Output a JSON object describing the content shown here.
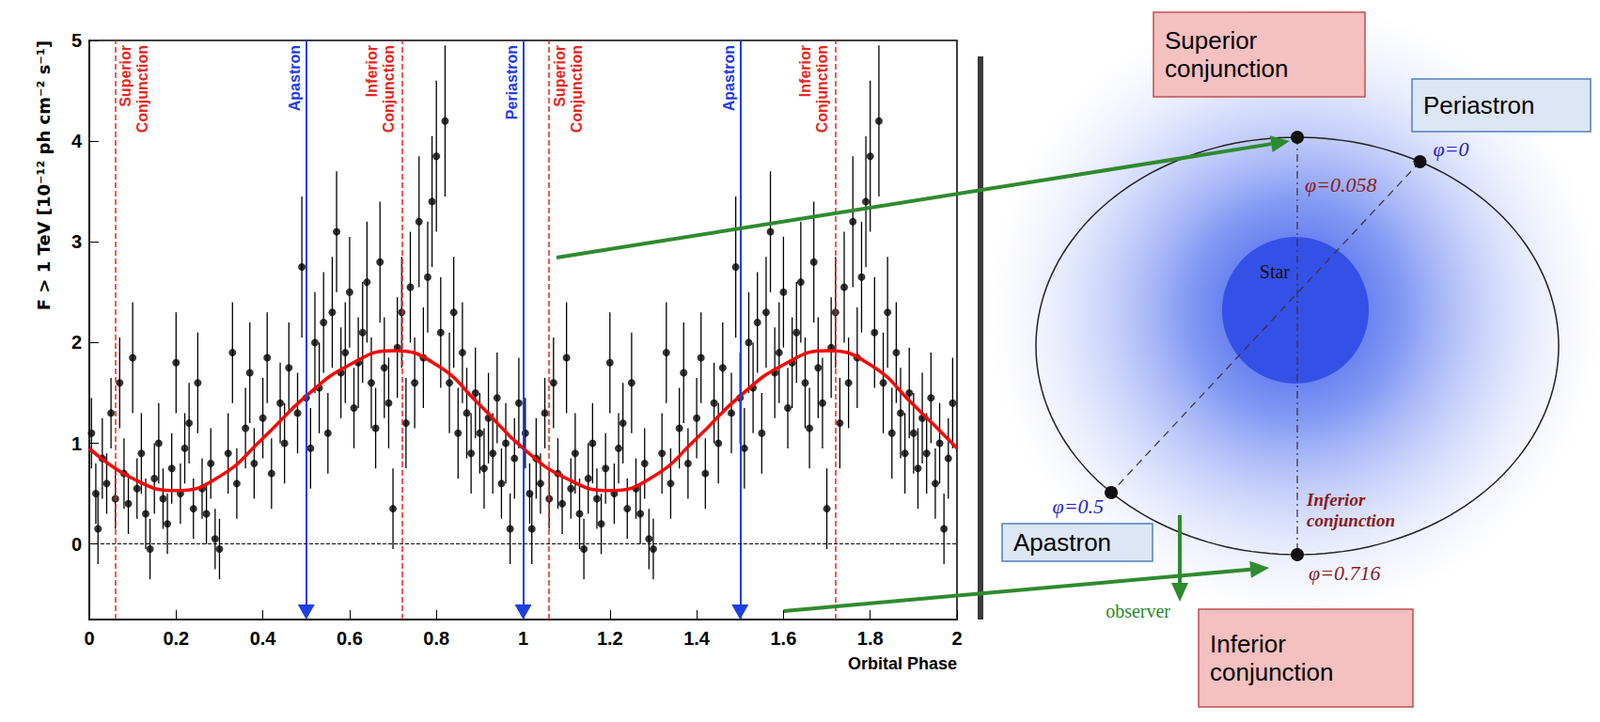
{
  "chart_data": {
    "type": "scatter",
    "xlabel": "Orbital Phase",
    "ylabel": "F > 1 TeV [10⁻¹² ph cm⁻² s⁻¹]",
    "xlim": [
      0,
      2
    ],
    "xticks": [
      0,
      0.2,
      0.4,
      0.6,
      0.8,
      1,
      1.2,
      1.4,
      1.6,
      1.8,
      2
    ],
    "ylim": [
      -0.75,
      5
    ],
    "yticks": [
      0,
      1,
      2,
      3,
      4,
      5
    ],
    "grid": false,
    "series": [
      {
        "type": "scatter",
        "color": "#000000",
        "marker": "circle",
        "x": [
          0.005,
          0.015,
          0.02,
          0.03,
          0.04,
          0.05,
          0.06,
          0.07,
          0.08,
          0.09,
          0.1,
          0.11,
          0.12,
          0.13,
          0.14,
          0.15,
          0.16,
          0.17,
          0.18,
          0.19,
          0.2,
          0.21,
          0.22,
          0.23,
          0.24,
          0.25,
          0.26,
          0.27,
          0.28,
          0.29,
          0.3,
          0.32,
          0.33,
          0.34,
          0.36,
          0.37,
          0.38,
          0.4,
          0.41,
          0.42,
          0.44,
          0.45,
          0.46,
          0.48,
          0.49,
          0.5,
          0.51,
          0.52,
          0.53,
          0.54,
          0.55,
          0.56,
          0.57,
          0.58,
          0.59,
          0.6,
          0.61,
          0.62,
          0.63,
          0.64,
          0.65,
          0.66,
          0.67,
          0.68,
          0.69,
          0.7,
          0.71,
          0.72,
          0.73,
          0.74,
          0.75,
          0.76,
          0.77,
          0.78,
          0.79,
          0.8,
          0.81,
          0.82,
          0.83,
          0.84,
          0.85,
          0.86,
          0.87,
          0.88,
          0.89,
          0.9,
          0.91,
          0.92,
          0.93,
          0.94,
          0.95,
          0.96,
          0.97,
          0.98,
          0.99,
          1.005,
          1.015,
          1.02,
          1.03,
          1.04,
          1.05,
          1.06,
          1.07,
          1.08,
          1.09,
          1.1,
          1.11,
          1.12,
          1.13,
          1.14,
          1.15,
          1.16,
          1.17,
          1.18,
          1.19,
          1.2,
          1.21,
          1.22,
          1.23,
          1.24,
          1.25,
          1.26,
          1.27,
          1.28,
          1.29,
          1.3,
          1.32,
          1.33,
          1.34,
          1.36,
          1.37,
          1.38,
          1.4,
          1.41,
          1.42,
          1.44,
          1.45,
          1.46,
          1.48,
          1.49,
          1.5,
          1.51,
          1.52,
          1.53,
          1.54,
          1.55,
          1.56,
          1.57,
          1.58,
          1.59,
          1.6,
          1.61,
          1.62,
          1.63,
          1.64,
          1.65,
          1.66,
          1.67,
          1.68,
          1.69,
          1.7,
          1.71,
          1.72,
          1.73,
          1.74,
          1.75,
          1.76,
          1.77,
          1.78,
          1.79,
          1.8,
          1.81,
          1.82,
          1.83,
          1.84,
          1.85,
          1.86,
          1.87,
          1.88,
          1.89,
          1.9,
          1.91,
          1.92,
          1.93,
          1.94,
          1.95,
          1.96,
          1.97,
          1.98,
          1.99
        ],
        "values": [
          1.1,
          0.5,
          0.15,
          0.85,
          0.6,
          1.3,
          0.45,
          1.6,
          0.7,
          0.4,
          1.85,
          0.55,
          0.9,
          0.3,
          -0.05,
          0.65,
          1.0,
          0.45,
          0.2,
          0.75,
          1.8,
          0.5,
          0.95,
          1.2,
          0.35,
          1.6,
          0.55,
          0.3,
          0.8,
          0.05,
          -0.05,
          0.9,
          1.9,
          0.6,
          1.15,
          1.7,
          0.8,
          1.25,
          1.85,
          0.7,
          1.4,
          1.0,
          1.75,
          1.3,
          2.75,
          1.45,
          0.95,
          2.0,
          1.55,
          2.2,
          1.1,
          2.3,
          3.1,
          1.7,
          1.9,
          2.5,
          1.35,
          1.8,
          2.1,
          2.6,
          1.6,
          1.15,
          2.8,
          1.75,
          1.4,
          0.35,
          1.95,
          2.3,
          1.2,
          2.55,
          1.6,
          3.2,
          1.85,
          2.65,
          3.4,
          3.85,
          2.1,
          4.2,
          1.6,
          2.3,
          1.1,
          1.9,
          1.3,
          0.9,
          1.5,
          1.1,
          0.75,
          1.25,
          0.9,
          1.45,
          0.6,
          1.0,
          0.15,
          0.85,
          1.4,
          1.1,
          0.5,
          0.15,
          0.85,
          0.6,
          1.3,
          0.45,
          1.6,
          0.7,
          0.4,
          1.85,
          0.55,
          0.9,
          0.3,
          -0.05,
          0.65,
          1.0,
          0.45,
          0.2,
          0.75,
          1.8,
          0.5,
          0.95,
          1.2,
          0.35,
          1.6,
          0.55,
          0.3,
          0.8,
          0.05,
          -0.05,
          0.9,
          1.9,
          0.6,
          1.15,
          1.7,
          0.8,
          1.25,
          1.85,
          0.7,
          1.4,
          1.0,
          1.75,
          1.3,
          2.75,
          1.45,
          0.95,
          2.0,
          1.55,
          2.2,
          1.1,
          2.3,
          3.1,
          1.7,
          1.9,
          2.5,
          1.35,
          1.8,
          2.1,
          2.6,
          1.6,
          1.15,
          2.8,
          1.75,
          1.4,
          0.35,
          1.95,
          2.3,
          1.2,
          2.55,
          1.6,
          3.2,
          1.85,
          2.65,
          3.4,
          3.85,
          2.1,
          4.2,
          1.6,
          2.3,
          1.1,
          1.9,
          1.3,
          0.9,
          1.5,
          1.1,
          0.75,
          1.25,
          0.9,
          1.45,
          0.6,
          1.0,
          0.15,
          0.85,
          1.4
        ],
        "errors": [
          0.35,
          0.3,
          0.35,
          0.4,
          0.3,
          0.35,
          0.3,
          0.45,
          0.35,
          0.3,
          0.55,
          0.3,
          0.4,
          0.35,
          0.3,
          0.35,
          0.4,
          0.3,
          0.3,
          0.35,
          0.5,
          0.3,
          0.35,
          0.4,
          0.3,
          0.5,
          0.3,
          0.3,
          0.35,
          0.3,
          0.3,
          0.4,
          0.5,
          0.35,
          0.4,
          0.5,
          0.35,
          0.4,
          0.45,
          0.35,
          0.4,
          0.4,
          0.45,
          0.4,
          0.7,
          0.45,
          0.4,
          0.5,
          0.45,
          0.5,
          0.4,
          0.55,
          0.6,
          0.45,
          0.5,
          0.55,
          0.4,
          0.45,
          0.5,
          0.6,
          0.45,
          0.4,
          0.6,
          0.5,
          0.45,
          0.4,
          0.5,
          0.55,
          0.45,
          0.55,
          0.45,
          0.65,
          0.5,
          0.55,
          0.65,
          0.75,
          0.55,
          0.75,
          0.5,
          0.55,
          0.45,
          0.5,
          0.45,
          0.4,
          0.45,
          0.4,
          0.4,
          0.45,
          0.4,
          0.45,
          0.35,
          0.4,
          0.35,
          0.4,
          0.45,
          0.35,
          0.3,
          0.35,
          0.4,
          0.3,
          0.35,
          0.3,
          0.45,
          0.35,
          0.3,
          0.55,
          0.3,
          0.4,
          0.35,
          0.3,
          0.35,
          0.4,
          0.3,
          0.3,
          0.35,
          0.5,
          0.3,
          0.35,
          0.4,
          0.3,
          0.5,
          0.3,
          0.3,
          0.35,
          0.3,
          0.3,
          0.4,
          0.5,
          0.35,
          0.4,
          0.5,
          0.35,
          0.4,
          0.45,
          0.35,
          0.4,
          0.4,
          0.45,
          0.4,
          0.7,
          0.45,
          0.4,
          0.5,
          0.45,
          0.5,
          0.4,
          0.55,
          0.6,
          0.45,
          0.5,
          0.55,
          0.4,
          0.45,
          0.5,
          0.6,
          0.45,
          0.4,
          0.6,
          0.5,
          0.45,
          0.4,
          0.5,
          0.55,
          0.45,
          0.55,
          0.45,
          0.65,
          0.5,
          0.55,
          0.65,
          0.75,
          0.55,
          0.75,
          0.5,
          0.55,
          0.45,
          0.5,
          0.45,
          0.4,
          0.45,
          0.4,
          0.4,
          0.45,
          0.4,
          0.45,
          0.35,
          0.4,
          0.35,
          0.4,
          0.45
        ]
      },
      {
        "type": "line",
        "color": "#ff0000",
        "line_style": "solid",
        "x": [
          0,
          0.1,
          0.2,
          0.3,
          0.4,
          0.5,
          0.6,
          0.7,
          0.8,
          0.9,
          1,
          1.1,
          1.2,
          1.3,
          1.4,
          1.5,
          1.6,
          1.7,
          1.8,
          1.9,
          2
        ],
        "values": [
          0.95,
          0.65,
          0.53,
          0.67,
          1.05,
          1.47,
          1.78,
          1.92,
          1.78,
          1.38,
          0.95,
          0.65,
          0.53,
          0.67,
          1.05,
          1.47,
          1.78,
          1.92,
          1.78,
          1.38,
          0.95
        ]
      }
    ],
    "hlines": [
      {
        "y": 0,
        "color": "#000000",
        "line_style": "dashed"
      }
    ],
    "vlines": [
      {
        "x": 0.058,
        "text": "Superior Conjunction",
        "color": "#e8261f",
        "line_style": "dashed"
      },
      {
        "x": 0.5,
        "text": "Apastron",
        "color": "#1e3ee6",
        "line_style": "solid",
        "marker": "triangle"
      },
      {
        "x": 0.716,
        "text": "Inferior Conjunction",
        "color": "#e8261f",
        "line_style": "dashed"
      },
      {
        "x": 1,
        "text": "Periastron",
        "color": "#1e3ee6",
        "line_style": "solid",
        "marker": "triangle"
      },
      {
        "x": 1.058,
        "text": "Superior Conjunction",
        "color": "#e8261f",
        "line_style": "dashed"
      },
      {
        "x": 1.5,
        "text": "Apastron",
        "color": "#1e3ee6",
        "line_style": "solid",
        "marker": "triangle"
      },
      {
        "x": 1.716,
        "text": "Inferior Conjunction",
        "color": "#e8261f",
        "line_style": "dashed"
      }
    ]
  },
  "diagram": {
    "callouts": [
      "Superior conjunction",
      "Periastron",
      "Apastron",
      "Inferior conjunction"
    ],
    "phases": [
      "φ=0.058",
      "φ=0",
      "φ=0.5",
      "φ=0.716"
    ],
    "star": "Star",
    "orbit_label": "Inferior conjunction",
    "observer": "observer"
  }
}
